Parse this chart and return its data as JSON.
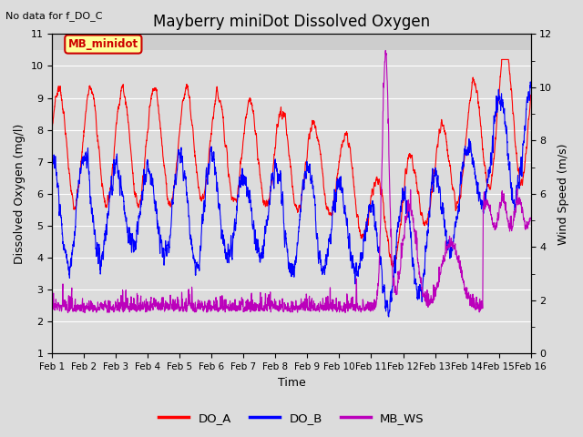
{
  "title": "Mayberry miniDot Dissolved Oxygen",
  "subtitle": "No data for f_DO_C",
  "xlabel": "Time",
  "ylabel_left": "Dissolved Oxygen (mg/l)",
  "ylabel_right": "Wind Speed (m/s)",
  "ylim_left": [
    1.0,
    11.0
  ],
  "ylim_right": [
    0,
    12
  ],
  "yticks_left": [
    1.0,
    2.0,
    3.0,
    4.0,
    5.0,
    6.0,
    7.0,
    8.0,
    9.0,
    10.0,
    11.0
  ],
  "yticks_right": [
    0,
    2,
    4,
    6,
    8,
    10,
    12
  ],
  "xtick_labels": [
    "Feb 1",
    "Feb 2",
    "Feb 3",
    "Feb 4",
    "Feb 5",
    "Feb 6",
    "Feb 7",
    "Feb 8",
    "Feb 9",
    "Feb 10",
    "Feb 11",
    "Feb 12",
    "Feb 13",
    "Feb 14",
    "Feb 15",
    "Feb 16"
  ],
  "color_DO_A": "#ff0000",
  "color_DO_B": "#0000ff",
  "color_MB_WS": "#bb00bb",
  "bg_color": "#dcdcdc",
  "plot_bg": "#dcdcdc",
  "upper_band_color": "#c8c8c8",
  "annotation_box_text": "MB_minidot",
  "annotation_box_facecolor": "#ffff99",
  "annotation_box_edgecolor": "#cc0000",
  "annotation_text_color": "#cc0000",
  "grid_color": "#ffffff",
  "title_fontsize": 12,
  "label_fontsize": 9,
  "tick_fontsize": 8,
  "line_width": 0.8,
  "n_points": 3000
}
